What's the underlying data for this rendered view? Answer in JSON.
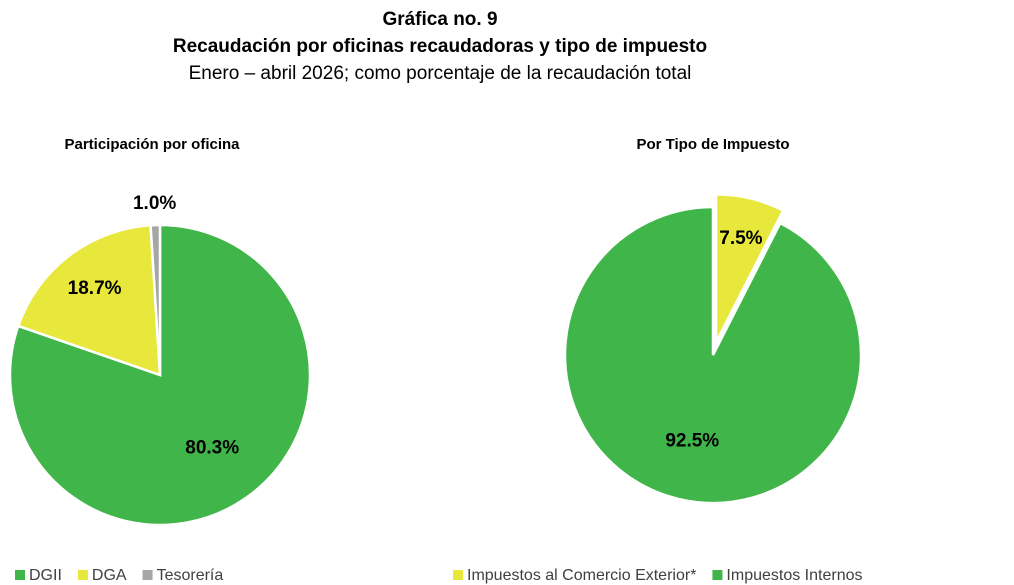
{
  "header": {
    "title": "Gráfica no. 9",
    "subtitle": "Recaudación por oficinas recaudadoras y tipo de impuesto",
    "note": "Enero – abril 2026; como porcentaje de la recaudación total"
  },
  "chart_data": [
    {
      "type": "pie",
      "title": "Participación por oficina",
      "categories": [
        "DGII",
        "DGA",
        "Tesorería"
      ],
      "values": [
        80.3,
        18.7,
        1.0
      ],
      "value_labels": [
        "80.3%",
        "18.7%",
        "1.0%"
      ],
      "colors": [
        "#3fb54a",
        "#e8e83c",
        "#a6a6a6"
      ]
    },
    {
      "type": "pie",
      "title": "Por Tipo de Impuesto",
      "categories": [
        "Impuestos al Comercio Exterior*",
        "Impuestos Internos"
      ],
      "values": [
        7.5,
        92.5
      ],
      "value_labels": [
        "7.5%",
        "92.5%"
      ],
      "colors": [
        "#e8e83c",
        "#3fb54a"
      ]
    }
  ]
}
